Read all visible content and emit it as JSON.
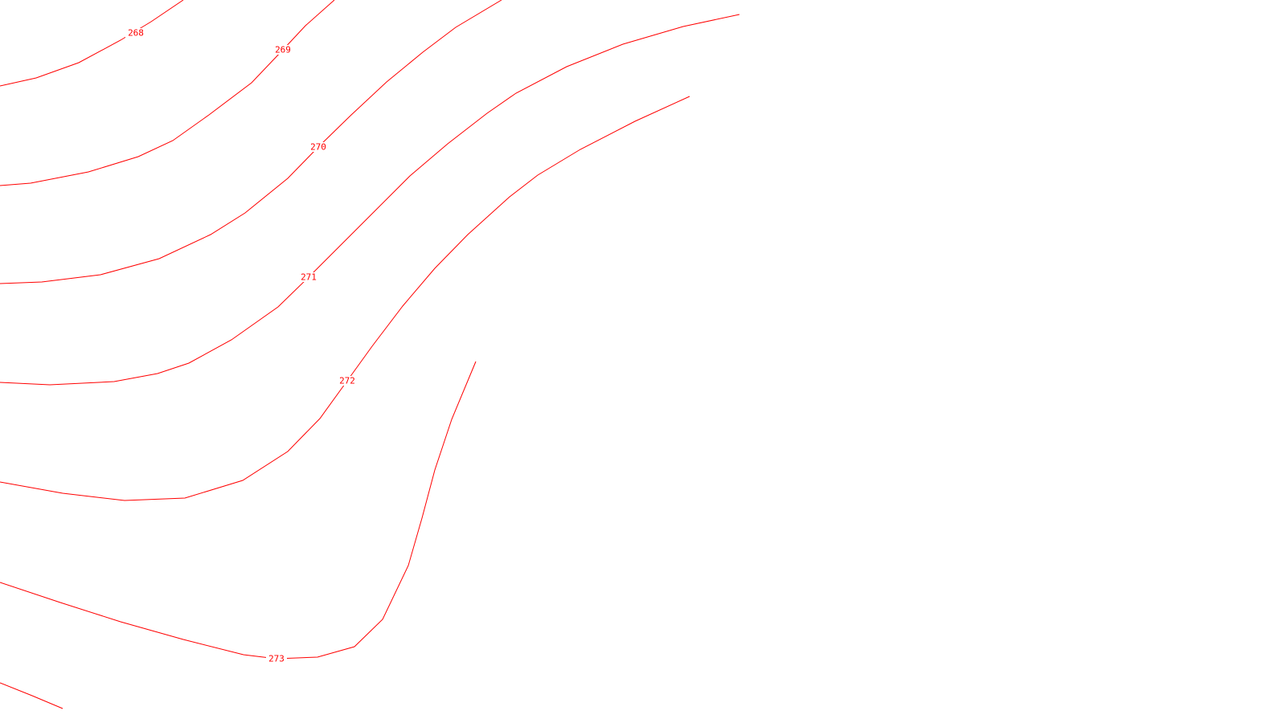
{
  "map": {
    "line_color": "#ff0000",
    "background_color": "#ffffff",
    "contours": [
      {
        "id": "268",
        "elevation_label": "268"
      },
      {
        "id": "269",
        "elevation_label": "269"
      },
      {
        "id": "270",
        "elevation_label": "270"
      },
      {
        "id": "271",
        "elevation_label": "271"
      },
      {
        "id": "272",
        "elevation_label": "272"
      },
      {
        "id": "273",
        "elevation_label": "273"
      }
    ]
  }
}
